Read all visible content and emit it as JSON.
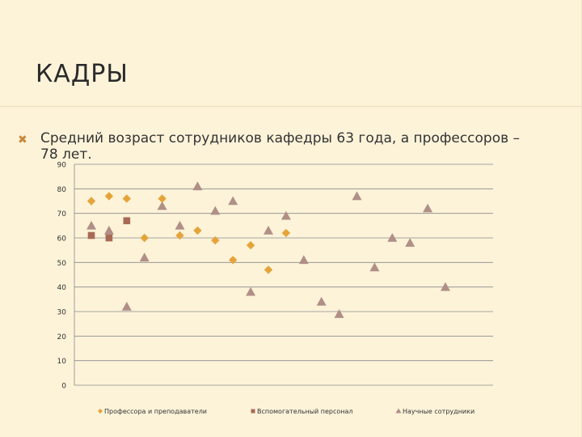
{
  "slide": {
    "title": "КАДРЫ",
    "bullet_icon": "bullet-x-icon",
    "bullet_text": "Средний возраст сотрудников кафедры 63 года, а профессоров – 78 лет."
  },
  "colors": {
    "background": "#fcf3d9",
    "series_professors": "#e5a43a",
    "series_support": "#a86a55",
    "series_research": "#b08f87"
  },
  "chart_data": {
    "type": "scatter",
    "title": "",
    "xlabel": "",
    "ylabel": "",
    "ylim": [
      0,
      90
    ],
    "yticks": [
      0,
      10,
      20,
      30,
      40,
      50,
      60,
      70,
      80,
      90
    ],
    "xlim": [
      0,
      22
    ],
    "grid": true,
    "legend_position": "bottom",
    "series": [
      {
        "name": "Профессора и преподаватели",
        "marker": "diamond",
        "points": [
          [
            1,
            75
          ],
          [
            2,
            77
          ],
          [
            3,
            76
          ],
          [
            4,
            60
          ],
          [
            5,
            76
          ],
          [
            6,
            61
          ],
          [
            7,
            63
          ],
          [
            8,
            59
          ],
          [
            9,
            51
          ],
          [
            10,
            57
          ],
          [
            11,
            47
          ],
          [
            12,
            62
          ]
        ]
      },
      {
        "name": "Вспомогательный персонал",
        "marker": "square",
        "points": [
          [
            1,
            61
          ],
          [
            2,
            60
          ],
          [
            3,
            67
          ]
        ]
      },
      {
        "name": "Научные сотрудники",
        "marker": "triangle",
        "points": [
          [
            1,
            65
          ],
          [
            2,
            63
          ],
          [
            3,
            32
          ],
          [
            4,
            52
          ],
          [
            5,
            73
          ],
          [
            6,
            65
          ],
          [
            7,
            81
          ],
          [
            8,
            71
          ],
          [
            9,
            75
          ],
          [
            10,
            38
          ],
          [
            11,
            63
          ],
          [
            12,
            69
          ],
          [
            13,
            51
          ],
          [
            14,
            34
          ],
          [
            15,
            29
          ],
          [
            16,
            77
          ],
          [
            17,
            48
          ],
          [
            18,
            60
          ],
          [
            19,
            58
          ],
          [
            20,
            72
          ],
          [
            21,
            40
          ]
        ]
      }
    ]
  }
}
